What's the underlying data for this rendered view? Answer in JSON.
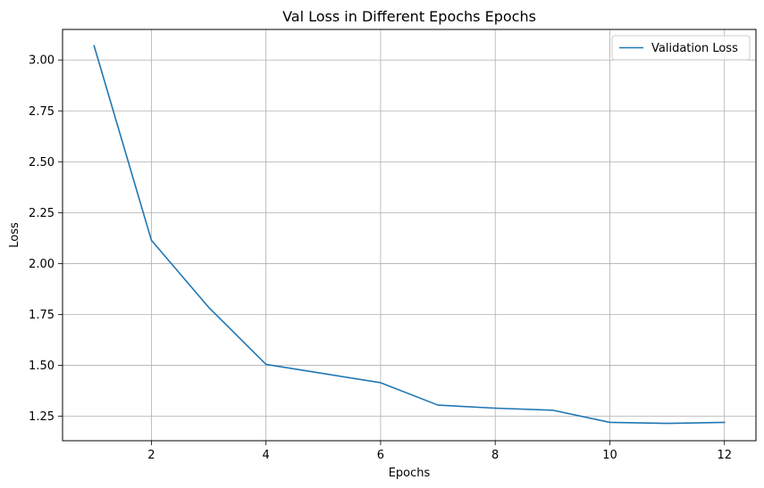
{
  "chart_data": {
    "type": "line",
    "title": "Val Loss in Different Epochs Epochs",
    "xlabel": "Epochs",
    "ylabel": "Loss",
    "xlim": [
      0.45,
      12.55
    ],
    "ylim": [
      1.13,
      3.15
    ],
    "xticks": [
      2,
      4,
      6,
      8,
      10,
      12
    ],
    "xtick_labels": [
      "2",
      "4",
      "6",
      "8",
      "10",
      "12"
    ],
    "yticks": [
      1.25,
      1.5,
      1.75,
      2.0,
      2.25,
      2.5,
      2.75,
      3.0
    ],
    "ytick_labels": [
      "1.25",
      "1.50",
      "1.75",
      "2.00",
      "2.25",
      "2.50",
      "2.75",
      "3.00"
    ],
    "grid": true,
    "legend_position": "top-right",
    "series": [
      {
        "name": "Validation Loss",
        "color": "#1f77b4",
        "x": [
          1,
          2,
          3,
          4,
          5,
          6,
          7,
          8,
          9,
          10,
          11,
          12
        ],
        "y": [
          3.07,
          2.115,
          1.785,
          1.505,
          1.46,
          1.415,
          1.305,
          1.29,
          1.28,
          1.22,
          1.215,
          1.22
        ]
      }
    ]
  }
}
